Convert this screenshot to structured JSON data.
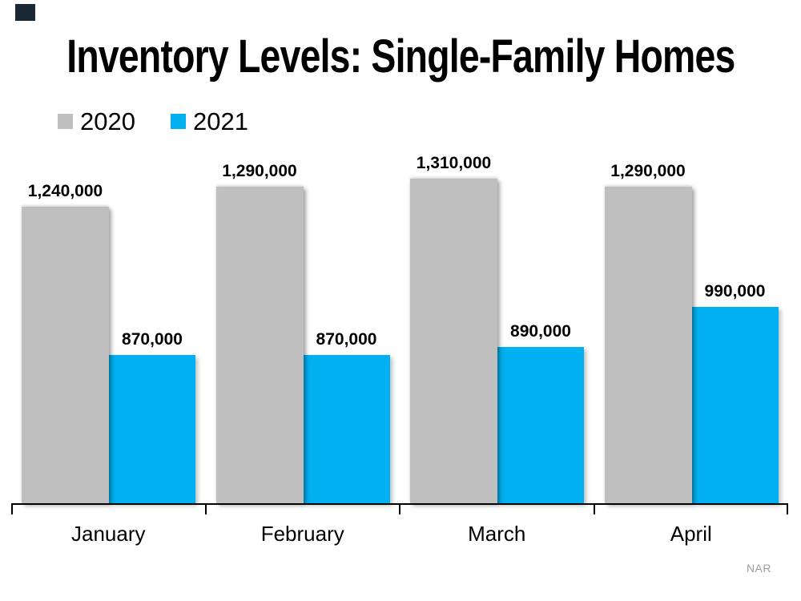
{
  "slide": {
    "title": "Inventory Levels: Single-Family Homes",
    "attribution": "NAR",
    "background_color": "#FFFFFF",
    "logo_mark_color": "#1B2733",
    "attribution_color": "#9E9E9E"
  },
  "legend": {
    "items": [
      {
        "label": "2020",
        "color": "#BFBFBF"
      },
      {
        "label": "2021",
        "color": "#00B0F0"
      }
    ]
  },
  "chart_data": {
    "type": "bar",
    "title": "Inventory Levels: Single-Family Homes",
    "categories": [
      "January",
      "February",
      "March",
      "April"
    ],
    "series": [
      {
        "name": "2020",
        "color": "#BFBFBF",
        "values": [
          1240000,
          1290000,
          1310000,
          1290000
        ],
        "labels": [
          "1,240,000",
          "1,290,000",
          "1,310,000",
          "1,290,000"
        ]
      },
      {
        "name": "2021",
        "color": "#00B0F0",
        "values": [
          870000,
          870000,
          890000,
          990000
        ],
        "labels": [
          "870,000",
          "870,000",
          "890,000",
          "990,000"
        ]
      }
    ],
    "ylim": [
      500000,
      1320000
    ],
    "grid": false,
    "y_axis_visible": false,
    "data_labels": true,
    "legend_position": "top-left",
    "source": "NAR"
  }
}
